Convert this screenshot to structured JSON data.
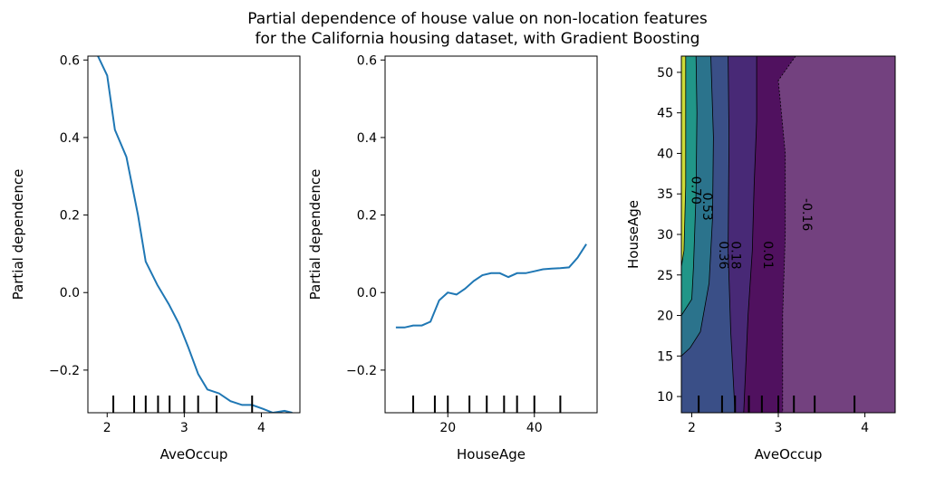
{
  "figure": {
    "title_line1": "Partial dependence of house value on non-location features",
    "title_line2": "for the California housing dataset, with Gradient Boosting"
  },
  "chart_data": [
    {
      "type": "line",
      "xlabel": "AveOccup",
      "ylabel": "Partial dependence",
      "xlim": [
        1.75,
        4.5
      ],
      "ylim": [
        -0.31,
        0.61
      ],
      "xticks": [
        "2",
        "3",
        "4"
      ],
      "yticks": [
        "−0.2",
        "0.0",
        "0.2",
        "0.4",
        "0.6"
      ],
      "x": [
        1.88,
        2.0,
        2.1,
        2.25,
        2.4,
        2.5,
        2.65,
        2.8,
        2.93,
        3.05,
        3.18,
        3.3,
        3.45,
        3.6,
        3.75,
        3.88,
        4.02,
        4.15,
        4.3,
        4.4
      ],
      "y": [
        0.61,
        0.56,
        0.42,
        0.35,
        0.2,
        0.08,
        0.02,
        -0.03,
        -0.08,
        -0.14,
        -0.21,
        -0.25,
        -0.26,
        -0.28,
        -0.29,
        -0.29,
        -0.3,
        -0.31,
        -0.305,
        -0.31
      ],
      "deciles": [
        2.08,
        2.35,
        2.5,
        2.66,
        2.81,
        3.0,
        3.18,
        3.42,
        3.88
      ]
    },
    {
      "type": "line",
      "xlabel": "HouseAge",
      "ylabel": "Partial dependence",
      "xlim": [
        5.5,
        54.5
      ],
      "ylim": [
        -0.31,
        0.61
      ],
      "xticks": [
        "20",
        "40"
      ],
      "yticks": [
        "−0.2",
        "0.0",
        "0.2",
        "0.4",
        "0.6"
      ],
      "x": [
        8,
        10,
        12,
        14,
        16,
        18,
        20,
        22,
        24,
        26,
        28,
        30,
        32,
        34,
        36,
        38,
        40,
        42,
        44,
        46,
        48,
        50,
        52
      ],
      "y": [
        -0.09,
        -0.09,
        -0.085,
        -0.085,
        -0.075,
        -0.02,
        0.0,
        -0.005,
        0.01,
        0.03,
        0.045,
        0.05,
        0.05,
        0.04,
        0.05,
        0.05,
        0.055,
        0.06,
        0.062,
        0.063,
        0.065,
        0.09,
        0.125
      ],
      "deciles": [
        12,
        17,
        20,
        25,
        29,
        33,
        36,
        40,
        46
      ]
    },
    {
      "type": "heatmap",
      "xlabel": "AveOccup",
      "ylabel": "HouseAge",
      "xlim": [
        1.88,
        4.35
      ],
      "ylim": [
        8,
        52
      ],
      "xticks": [
        "2",
        "3",
        "4"
      ],
      "yticks": [
        "10",
        "15",
        "20",
        "25",
        "30",
        "35",
        "40",
        "45",
        "50"
      ],
      "levels": [
        {
          "color": "#fde725",
          "label": ""
        },
        {
          "color": "#a5db36",
          "label": ""
        },
        {
          "color": "#4ac16d",
          "label": "0.70"
        },
        {
          "color": "#1fa187",
          "label": "0.53"
        },
        {
          "color": "#277f8e",
          "label": "0.36"
        },
        {
          "color": "#365c8d",
          "label": "0.18"
        },
        {
          "color": "#46327e",
          "label": "0.01"
        },
        {
          "color": "#440154",
          "label": "-0.16"
        }
      ],
      "contour_boundaries_x": [
        [
          [
            1.88,
            52
          ],
          [
            1.88,
            8
          ]
        ],
        [
          [
            1.93,
            52
          ],
          [
            1.93,
            36
          ],
          [
            1.91,
            28
          ],
          [
            1.88,
            26
          ]
        ],
        [
          [
            2.05,
            52
          ],
          [
            2.06,
            45
          ],
          [
            2.05,
            35
          ],
          [
            2.02,
            26
          ],
          [
            2.0,
            22
          ],
          [
            1.88,
            20
          ]
        ],
        [
          [
            2.22,
            52
          ],
          [
            2.25,
            42
          ],
          [
            2.24,
            32
          ],
          [
            2.2,
            24
          ],
          [
            2.1,
            18
          ],
          [
            1.98,
            16
          ],
          [
            1.88,
            15
          ]
        ],
        [
          [
            2.42,
            52
          ],
          [
            2.43,
            42
          ],
          [
            2.42,
            28
          ],
          [
            2.45,
            18
          ],
          [
            2.5,
            8
          ]
        ],
        [
          [
            2.75,
            52
          ],
          [
            2.75,
            44
          ],
          [
            2.72,
            36
          ],
          [
            2.7,
            28
          ],
          [
            2.65,
            20
          ],
          [
            2.6,
            8
          ]
        ],
        [
          [
            3.2,
            52
          ],
          [
            3.0,
            49
          ],
          [
            3.08,
            40
          ],
          [
            3.08,
            30
          ],
          [
            3.05,
            20
          ],
          [
            3.05,
            8
          ]
        ]
      ],
      "deciles": [
        2.08,
        2.35,
        2.5,
        2.66,
        2.81,
        3.0,
        3.18,
        3.42,
        3.88
      ]
    }
  ]
}
